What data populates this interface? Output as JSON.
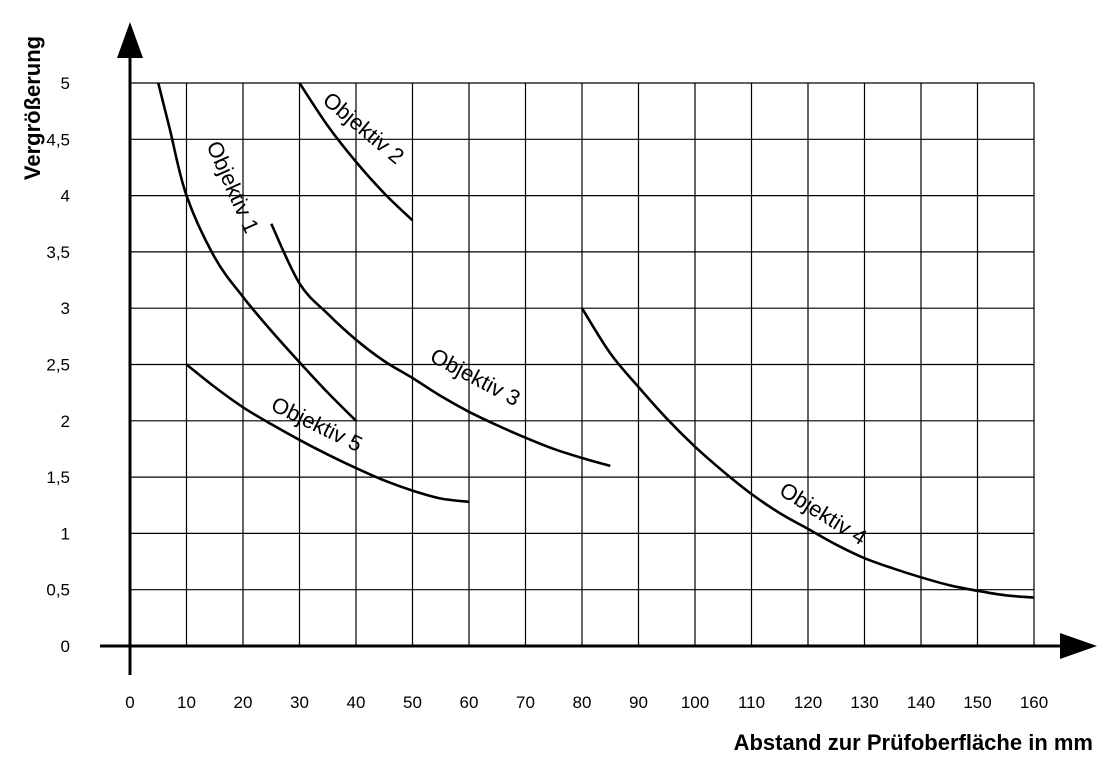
{
  "chart_data": {
    "type": "line",
    "xlabel": "Abstand zur Prüfoberfläche in mm",
    "ylabel": "Vergrößerung",
    "xlim": [
      0,
      160
    ],
    "ylim": [
      0,
      5
    ],
    "x_ticks": [
      "0",
      "10",
      "20",
      "30",
      "40",
      "50",
      "60",
      "70",
      "80",
      "90",
      "100",
      "110",
      "120",
      "130",
      "140",
      "150",
      "160"
    ],
    "y_ticks": [
      "0",
      "0,5",
      "1",
      "1,5",
      "2",
      "2,5",
      "3",
      "3,5",
      "4",
      "4,5",
      "5"
    ],
    "grid": true,
    "series": [
      {
        "name": "Objektiv 1",
        "points": [
          [
            5,
            5.0
          ],
          [
            7,
            4.6
          ],
          [
            10,
            4.0
          ],
          [
            15,
            3.45
          ],
          [
            20,
            3.1
          ],
          [
            25,
            2.8
          ],
          [
            30,
            2.52
          ],
          [
            35,
            2.25
          ],
          [
            40,
            2.0
          ]
        ],
        "label_pos": [
          17,
          4.05
        ],
        "label_angle": 66
      },
      {
        "name": "Objektiv 2",
        "points": [
          [
            30,
            5.0
          ],
          [
            35,
            4.62
          ],
          [
            40,
            4.3
          ],
          [
            45,
            4.02
          ],
          [
            50,
            3.78
          ]
        ],
        "label_pos": [
          40.5,
          4.55
        ],
        "label_angle": 40
      },
      {
        "name": "Objektiv 3",
        "points": [
          [
            25,
            3.75
          ],
          [
            30,
            3.22
          ],
          [
            35,
            2.95
          ],
          [
            40,
            2.72
          ],
          [
            45,
            2.53
          ],
          [
            50,
            2.38
          ],
          [
            55,
            2.22
          ],
          [
            60,
            2.08
          ],
          [
            65,
            1.96
          ],
          [
            70,
            1.85
          ],
          [
            75,
            1.75
          ],
          [
            80,
            1.67
          ],
          [
            85,
            1.6
          ]
        ],
        "label_pos": [
          60.5,
          2.33
        ],
        "label_angle": 28
      },
      {
        "name": "Objektiv 4",
        "points": [
          [
            80,
            3.0
          ],
          [
            85,
            2.6
          ],
          [
            90,
            2.3
          ],
          [
            95,
            2.02
          ],
          [
            100,
            1.77
          ],
          [
            105,
            1.55
          ],
          [
            110,
            1.35
          ],
          [
            115,
            1.18
          ],
          [
            120,
            1.04
          ],
          [
            125,
            0.9
          ],
          [
            130,
            0.78
          ],
          [
            135,
            0.69
          ],
          [
            140,
            0.61
          ],
          [
            145,
            0.54
          ],
          [
            150,
            0.49
          ],
          [
            155,
            0.45
          ],
          [
            160,
            0.43
          ]
        ],
        "label_pos": [
          122,
          1.12
        ],
        "label_angle": 32
      },
      {
        "name": "Objektiv 5",
        "points": [
          [
            10,
            2.5
          ],
          [
            15,
            2.3
          ],
          [
            20,
            2.12
          ],
          [
            25,
            1.97
          ],
          [
            30,
            1.83
          ],
          [
            35,
            1.7
          ],
          [
            40,
            1.58
          ],
          [
            45,
            1.47
          ],
          [
            50,
            1.38
          ],
          [
            55,
            1.31
          ],
          [
            60,
            1.28
          ]
        ],
        "label_pos": [
          32.5,
          1.91
        ],
        "label_angle": 26
      }
    ]
  }
}
